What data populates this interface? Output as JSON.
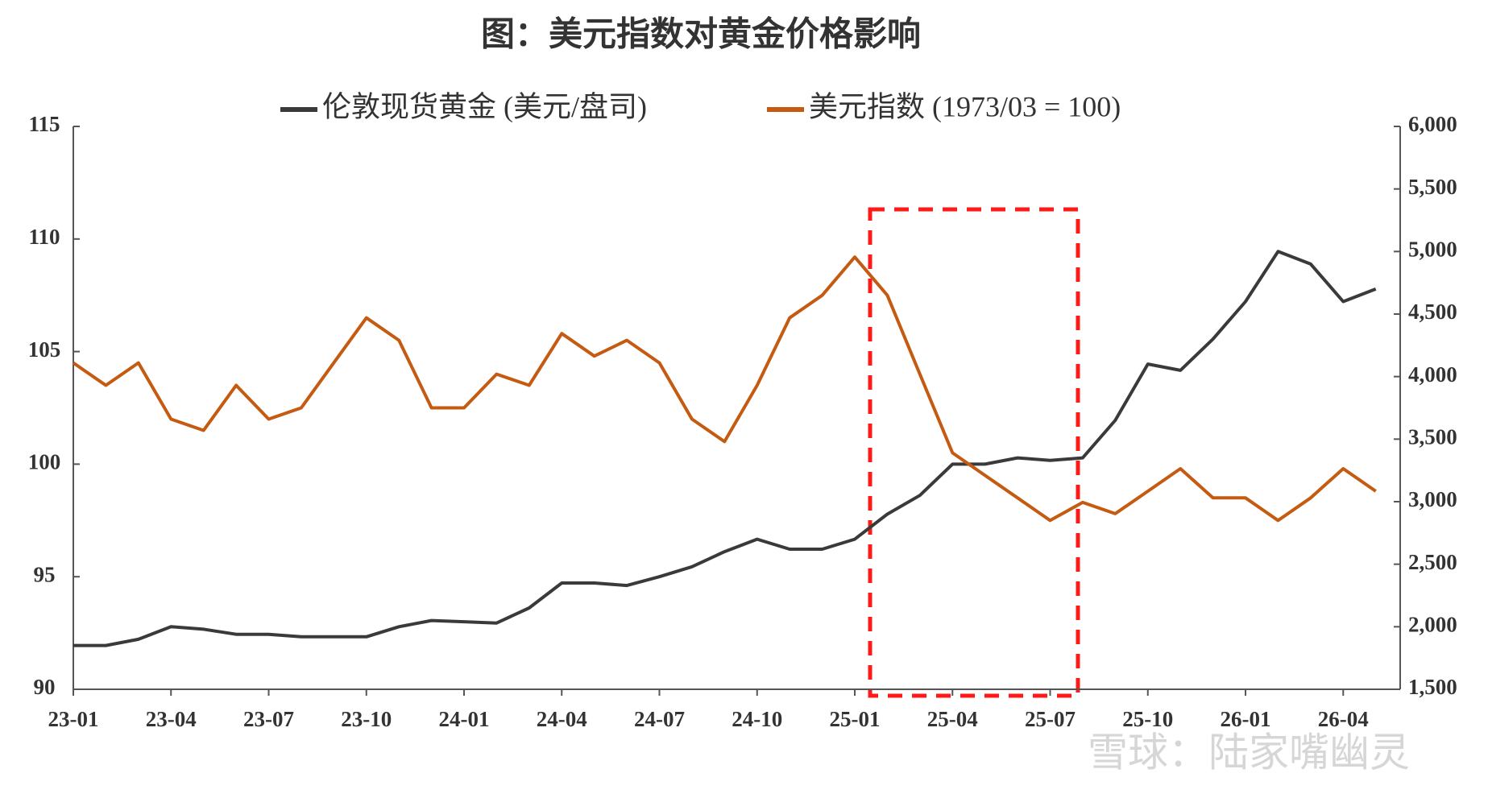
{
  "chart_data": {
    "type": "line",
    "title": "图：美元指数对黄金价格影响",
    "watermark": "雪球：陆家嘴幽灵",
    "x": [
      0,
      1,
      2,
      3,
      4,
      5,
      6,
      7,
      8,
      9,
      10,
      11,
      12,
      13,
      14,
      15,
      16,
      17,
      18,
      19,
      20,
      21,
      22,
      23,
      24,
      25,
      26,
      27,
      28,
      29,
      30,
      31,
      32,
      33,
      34,
      35,
      36,
      37,
      38,
      39,
      40
    ],
    "xlim": [
      0,
      40.75
    ],
    "xticks": [
      {
        "value": 0,
        "label": "23-01"
      },
      {
        "value": 3,
        "label": "23-04"
      },
      {
        "value": 6,
        "label": "23-07"
      },
      {
        "value": 9,
        "label": "23-10"
      },
      {
        "value": 12,
        "label": "24-01"
      },
      {
        "value": 15,
        "label": "24-04"
      },
      {
        "value": 18,
        "label": "24-07"
      },
      {
        "value": 21,
        "label": "24-10"
      },
      {
        "value": 24,
        "label": "25-01"
      },
      {
        "value": 27,
        "label": "25-04"
      },
      {
        "value": 30,
        "label": "25-07"
      },
      {
        "value": 33,
        "label": "25-10"
      },
      {
        "value": 36,
        "label": "26-01"
      },
      {
        "value": 39,
        "label": "26-04"
      }
    ],
    "ylim": [
      90,
      115
    ],
    "yticks": [
      90,
      95,
      100,
      105,
      110,
      115
    ],
    "y2lim": [
      1500,
      6000
    ],
    "y2ticks": [
      {
        "value": 1500,
        "label": "1,500"
      },
      {
        "value": 2000,
        "label": "2,000"
      },
      {
        "value": 2500,
        "label": "2,500"
      },
      {
        "value": 3000,
        "label": "3,000"
      },
      {
        "value": 3500,
        "label": "3,500"
      },
      {
        "value": 4000,
        "label": "4,000"
      },
      {
        "value": 4500,
        "label": "4,500"
      },
      {
        "value": 5000,
        "label": "5,000"
      },
      {
        "value": 5500,
        "label": "5,500"
      },
      {
        "value": 6000,
        "label": "6,000"
      }
    ],
    "series": [
      {
        "name": "伦敦现货黄金 (美元/盘司)",
        "color": "#3a3a3a",
        "axis": "y2",
        "values": [
          1850,
          1850,
          1900,
          2000,
          1980,
          1940,
          1940,
          1920,
          1920,
          1920,
          2000,
          2050,
          2040,
          2030,
          2150,
          2350,
          2350,
          2330,
          2400,
          2480,
          2600,
          2700,
          2620,
          2620,
          2700,
          2900,
          3050,
          3300,
          3300,
          3350,
          3330,
          3350,
          3650,
          4100,
          4050,
          4300,
          4600,
          5000,
          4900,
          4600,
          4700
        ]
      },
      {
        "name": "美元指数 (1973/03 = 100)",
        "color": "#c55a11",
        "values": [
          104.5,
          103.5,
          104.5,
          102,
          101.5,
          103.5,
          102,
          102.5,
          104.5,
          106.5,
          105.5,
          102.5,
          102.5,
          104,
          103.5,
          105.8,
          104.8,
          105.5,
          104.5,
          102,
          101,
          103.5,
          106.5,
          107.5,
          109.2,
          107.5,
          104,
          100.5,
          99.5,
          98.5,
          97.5,
          98.3,
          97.8,
          98.8,
          99.8,
          98.5,
          98.5,
          97.5,
          98.5,
          99.8,
          98.8
        ]
      }
    ]
  }
}
